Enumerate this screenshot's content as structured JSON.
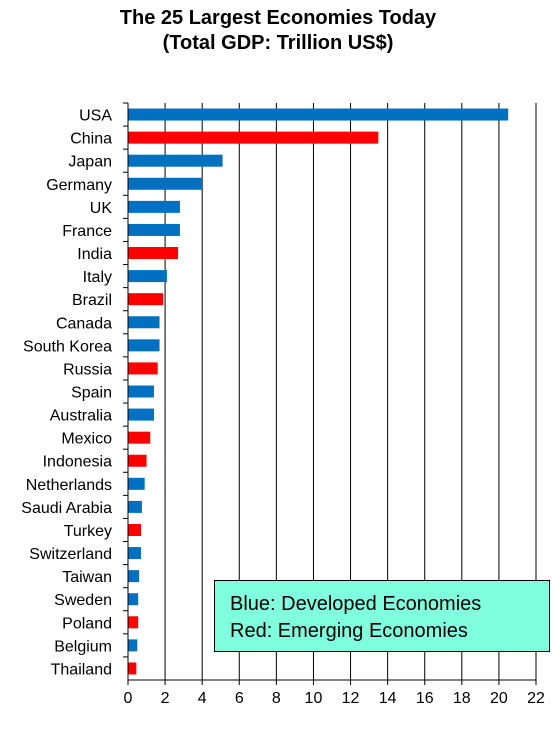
{
  "chart_data": {
    "type": "bar",
    "orientation": "horizontal",
    "title": "The 25 Largest Economies Today",
    "subtitle": "(Total GDP: Trillion US$)",
    "categories": [
      "USA",
      "China",
      "Japan",
      "Germany",
      "UK",
      "France",
      "India",
      "Italy",
      "Brazil",
      "Canada",
      "South Korea",
      "Russia",
      "Spain",
      "Australia",
      "Mexico",
      "Indonesia",
      "Netherlands",
      "Saudi Arabia",
      "Turkey",
      "Switzerland",
      "Taiwan",
      "Sweden",
      "Poland",
      "Belgium",
      "Thailand"
    ],
    "values": [
      20.5,
      13.5,
      5.1,
      4.0,
      2.8,
      2.8,
      2.7,
      2.1,
      1.9,
      1.7,
      1.7,
      1.6,
      1.4,
      1.4,
      1.2,
      1.0,
      0.9,
      0.75,
      0.7,
      0.7,
      0.6,
      0.55,
      0.55,
      0.5,
      0.45
    ],
    "groups": [
      "developed",
      "emerging",
      "developed",
      "developed",
      "developed",
      "developed",
      "emerging",
      "developed",
      "emerging",
      "developed",
      "developed",
      "emerging",
      "developed",
      "developed",
      "emerging",
      "emerging",
      "developed",
      "developed",
      "emerging",
      "developed",
      "developed",
      "developed",
      "emerging",
      "developed",
      "emerging"
    ],
    "colors": {
      "developed": "#0070c0",
      "emerging": "#ff0000"
    },
    "xlim": [
      0,
      22
    ],
    "xticks": [
      0,
      2,
      4,
      6,
      8,
      10,
      12,
      14,
      16,
      18,
      20,
      22
    ],
    "grid": "vertical",
    "legend": {
      "placement": "bottom-right",
      "background": "#80ffdf",
      "lines": [
        "Blue: Developed Economies",
        "Red: Emerging Economies"
      ]
    }
  }
}
